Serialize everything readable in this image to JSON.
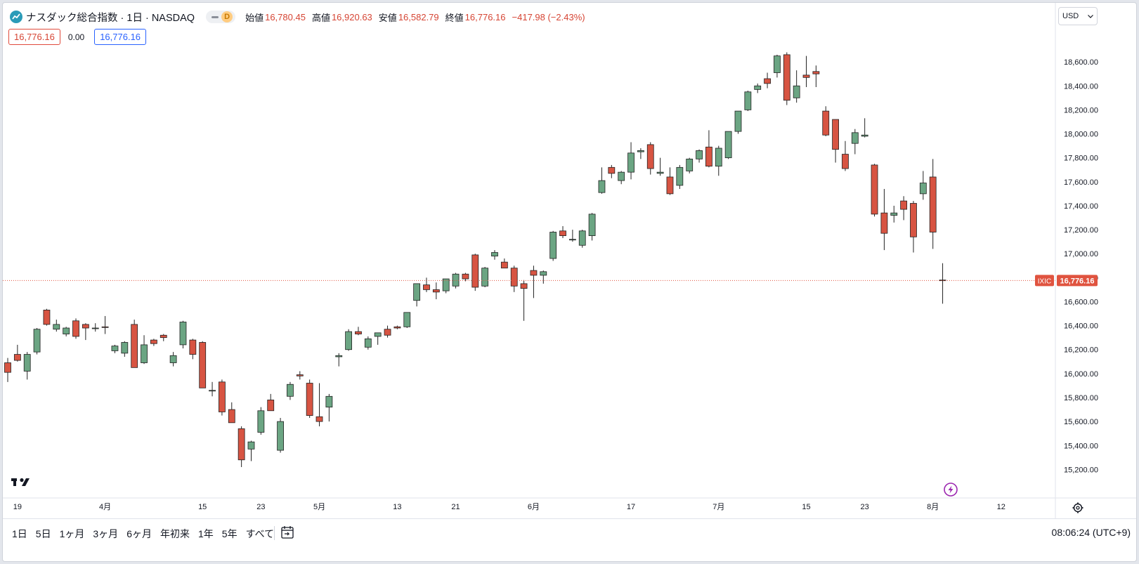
{
  "header": {
    "symbol_title": "ナスダック総合指数 · 1日 · NASDAQ",
    "data_status": "D",
    "open_label": "始値",
    "open_value": "16,780.45",
    "high_label": "高値",
    "high_value": "16,920.63",
    "low_label": "安値",
    "low_value": "16,582.79",
    "close_label": "終値",
    "close_value": "16,776.16",
    "change": "−417.98 (−2.43%)"
  },
  "badges": {
    "bid": "16,776.16",
    "spread": "0.00",
    "ask": "16,776.16"
  },
  "currency": {
    "selected": "USD"
  },
  "price_tag": {
    "symbol": "IXIC",
    "value": "16,776.16"
  },
  "range_buttons": [
    "1日",
    "5日",
    "1ヶ月",
    "3ヶ月",
    "6ヶ月",
    "年初来",
    "1年",
    "5年",
    "すべて"
  ],
  "clock": "08:06:24 (UTC+9)",
  "icons": {
    "logo": "tradingview-logo",
    "settings": "gear-icon",
    "alert": "lightning-icon",
    "goto": "calendar-goto-icon"
  },
  "colors": {
    "up": "#6ba583",
    "down": "#d75442",
    "wick": "#222222",
    "price_line": "#e0533f"
  },
  "chart_data": {
    "type": "candlestick",
    "ylim": [
      15050,
      18800
    ],
    "y_ticks": [
      15200,
      15400,
      15600,
      15800,
      16000,
      16200,
      16400,
      16600,
      16800,
      17000,
      17200,
      17400,
      17600,
      17800,
      18000,
      18200,
      18400,
      18600
    ],
    "y_tick_labels": [
      "15,200.00",
      "15,400.00",
      "15,600.00",
      "15,800.00",
      "16,000.00",
      "16,200.00",
      "16,400.00",
      "16,600.00",
      "16,800.00",
      "17,000.00",
      "17,200.00",
      "17,400.00",
      "17,600.00",
      "17,800.00",
      "18,000.00",
      "18,200.00",
      "18,400.00",
      "18,600.00"
    ],
    "x_tick_labels": [
      {
        "label": "19",
        "slot": 1
      },
      {
        "label": "4月",
        "slot": 10
      },
      {
        "label": "15",
        "slot": 20
      },
      {
        "label": "23",
        "slot": 26
      },
      {
        "label": "5月",
        "slot": 32
      },
      {
        "label": "13",
        "slot": 40
      },
      {
        "label": "21",
        "slot": 46
      },
      {
        "label": "6月",
        "slot": 54
      },
      {
        "label": "17",
        "slot": 64
      },
      {
        "label": "7月",
        "slot": 73
      },
      {
        "label": "15",
        "slot": 82
      },
      {
        "label": "23",
        "slot": 88
      },
      {
        "label": "8月",
        "slot": 95
      },
      {
        "label": "12",
        "slot": 102
      }
    ],
    "last_price": 16776.16,
    "candles": [
      {
        "slot": 0,
        "o": 16090,
        "h": 16130,
        "l": 15930,
        "c": 16010
      },
      {
        "slot": 1,
        "o": 16160,
        "h": 16240,
        "l": 16100,
        "c": 16110
      },
      {
        "slot": 2,
        "o": 16020,
        "h": 16180,
        "l": 15950,
        "c": 16160
      },
      {
        "slot": 3,
        "o": 16180,
        "h": 16380,
        "l": 16160,
        "c": 16370
      },
      {
        "slot": 4,
        "o": 16530,
        "h": 16540,
        "l": 16400,
        "c": 16410
      },
      {
        "slot": 5,
        "o": 16370,
        "h": 16450,
        "l": 16350,
        "c": 16410
      },
      {
        "slot": 6,
        "o": 16330,
        "h": 16390,
        "l": 16310,
        "c": 16380
      },
      {
        "slot": 7,
        "o": 16440,
        "h": 16460,
        "l": 16290,
        "c": 16310
      },
      {
        "slot": 8,
        "o": 16410,
        "h": 16420,
        "l": 16280,
        "c": 16380
      },
      {
        "slot": 9,
        "o": 16380,
        "h": 16420,
        "l": 16350,
        "c": 16380
      },
      {
        "slot": 10,
        "o": 16390,
        "h": 16480,
        "l": 16330,
        "c": 16385
      },
      {
        "slot": 11,
        "o": 16190,
        "h": 16240,
        "l": 16170,
        "c": 16230
      },
      {
        "slot": 12,
        "o": 16170,
        "h": 16270,
        "l": 16140,
        "c": 16260
      },
      {
        "slot": 13,
        "o": 16410,
        "h": 16450,
        "l": 16050,
        "c": 16050
      },
      {
        "slot": 14,
        "o": 16090,
        "h": 16320,
        "l": 16080,
        "c": 16240
      },
      {
        "slot": 15,
        "o": 16280,
        "h": 16290,
        "l": 16230,
        "c": 16250
      },
      {
        "slot": 16,
        "o": 16320,
        "h": 16330,
        "l": 16270,
        "c": 16300
      },
      {
        "slot": 17,
        "o": 16090,
        "h": 16180,
        "l": 16060,
        "c": 16150
      },
      {
        "slot": 18,
        "o": 16240,
        "h": 16440,
        "l": 16210,
        "c": 16430
      },
      {
        "slot": 19,
        "o": 16280,
        "h": 16290,
        "l": 16120,
        "c": 16160
      },
      {
        "slot": 20,
        "o": 16260,
        "h": 16270,
        "l": 15880,
        "c": 15880
      },
      {
        "slot": 21,
        "o": 15860,
        "h": 15930,
        "l": 15810,
        "c": 15860
      },
      {
        "slot": 22,
        "o": 15930,
        "h": 15950,
        "l": 15650,
        "c": 15680
      },
      {
        "slot": 23,
        "o": 15700,
        "h": 15760,
        "l": 15590,
        "c": 15590
      },
      {
        "slot": 24,
        "o": 15540,
        "h": 15560,
        "l": 15220,
        "c": 15280
      },
      {
        "slot": 25,
        "o": 15370,
        "h": 15440,
        "l": 15270,
        "c": 15430
      },
      {
        "slot": 26,
        "o": 15510,
        "h": 15720,
        "l": 15490,
        "c": 15690
      },
      {
        "slot": 27,
        "o": 15780,
        "h": 15830,
        "l": 15710,
        "c": 15690
      },
      {
        "slot": 28,
        "o": 15360,
        "h": 15630,
        "l": 15340,
        "c": 15600
      },
      {
        "slot": 29,
        "o": 15810,
        "h": 15930,
        "l": 15780,
        "c": 15910
      },
      {
        "slot": 30,
        "o": 15990,
        "h": 16020,
        "l": 15950,
        "c": 15980
      },
      {
        "slot": 31,
        "o": 15920,
        "h": 15950,
        "l": 15630,
        "c": 15650
      },
      {
        "slot": 32,
        "o": 15640,
        "h": 15920,
        "l": 15560,
        "c": 15600
      },
      {
        "slot": 33,
        "o": 15720,
        "h": 15830,
        "l": 15600,
        "c": 15810
      },
      {
        "slot": 34,
        "o": 16140,
        "h": 16170,
        "l": 16060,
        "c": 16150
      },
      {
        "slot": 35,
        "o": 16200,
        "h": 16370,
        "l": 16190,
        "c": 16350
      },
      {
        "slot": 36,
        "o": 16350,
        "h": 16390,
        "l": 16320,
        "c": 16330
      },
      {
        "slot": 37,
        "o": 16220,
        "h": 16310,
        "l": 16200,
        "c": 16290
      },
      {
        "slot": 38,
        "o": 16310,
        "h": 16340,
        "l": 16240,
        "c": 16340
      },
      {
        "slot": 39,
        "o": 16370,
        "h": 16400,
        "l": 16300,
        "c": 16320
      },
      {
        "slot": 40,
        "o": 16390,
        "h": 16400,
        "l": 16370,
        "c": 16380
      },
      {
        "slot": 41,
        "o": 16390,
        "h": 16510,
        "l": 16380,
        "c": 16510
      },
      {
        "slot": 42,
        "o": 16610,
        "h": 16750,
        "l": 16560,
        "c": 16750
      },
      {
        "slot": 43,
        "o": 16740,
        "h": 16800,
        "l": 16680,
        "c": 16700
      },
      {
        "slot": 44,
        "o": 16700,
        "h": 16760,
        "l": 16620,
        "c": 16680
      },
      {
        "slot": 45,
        "o": 16690,
        "h": 16790,
        "l": 16670,
        "c": 16790
      },
      {
        "slot": 46,
        "o": 16730,
        "h": 16840,
        "l": 16710,
        "c": 16830
      },
      {
        "slot": 47,
        "o": 16830,
        "h": 16840,
        "l": 16770,
        "c": 16790
      },
      {
        "slot": 48,
        "o": 16990,
        "h": 17000,
        "l": 16690,
        "c": 16720
      },
      {
        "slot": 49,
        "o": 16730,
        "h": 16890,
        "l": 16720,
        "c": 16880
      },
      {
        "slot": 50,
        "o": 16980,
        "h": 17030,
        "l": 16950,
        "c": 17010
      },
      {
        "slot": 51,
        "o": 16930,
        "h": 16960,
        "l": 16880,
        "c": 16880
      },
      {
        "slot": 52,
        "o": 16880,
        "h": 16900,
        "l": 16680,
        "c": 16730
      },
      {
        "slot": 53,
        "o": 16750,
        "h": 16780,
        "l": 16440,
        "c": 16710
      },
      {
        "slot": 54,
        "o": 16860,
        "h": 16900,
        "l": 16630,
        "c": 16820
      },
      {
        "slot": 55,
        "o": 16820,
        "h": 16860,
        "l": 16750,
        "c": 16850
      },
      {
        "slot": 56,
        "o": 16960,
        "h": 17190,
        "l": 16940,
        "c": 17180
      },
      {
        "slot": 57,
        "o": 17190,
        "h": 17230,
        "l": 17130,
        "c": 17150
      },
      {
        "slot": 58,
        "o": 17120,
        "h": 17200,
        "l": 17100,
        "c": 17120
      },
      {
        "slot": 59,
        "o": 17070,
        "h": 17200,
        "l": 17050,
        "c": 17190
      },
      {
        "slot": 60,
        "o": 17150,
        "h": 17340,
        "l": 17110,
        "c": 17330
      },
      {
        "slot": 61,
        "o": 17510,
        "h": 17720,
        "l": 17500,
        "c": 17610
      },
      {
        "slot": 62,
        "o": 17720,
        "h": 17740,
        "l": 17630,
        "c": 17670
      },
      {
        "slot": 63,
        "o": 17610,
        "h": 17690,
        "l": 17580,
        "c": 17680
      },
      {
        "slot": 64,
        "o": 17680,
        "h": 17930,
        "l": 17620,
        "c": 17840
      },
      {
        "slot": 65,
        "o": 17850,
        "h": 17880,
        "l": 17790,
        "c": 17860
      },
      {
        "slot": 66,
        "o": 17910,
        "h": 17930,
        "l": 17660,
        "c": 17710
      },
      {
        "slot": 67,
        "o": 17670,
        "h": 17800,
        "l": 17650,
        "c": 17680
      },
      {
        "slot": 68,
        "o": 17640,
        "h": 17720,
        "l": 17490,
        "c": 17500
      },
      {
        "slot": 69,
        "o": 17570,
        "h": 17740,
        "l": 17540,
        "c": 17720
      },
      {
        "slot": 70,
        "o": 17690,
        "h": 17800,
        "l": 17670,
        "c": 17790
      },
      {
        "slot": 71,
        "o": 17790,
        "h": 17870,
        "l": 17760,
        "c": 17860
      },
      {
        "slot": 72,
        "o": 17890,
        "h": 18030,
        "l": 17720,
        "c": 17730
      },
      {
        "slot": 73,
        "o": 17730,
        "h": 17900,
        "l": 17650,
        "c": 17880
      },
      {
        "slot": 74,
        "o": 17800,
        "h": 18010,
        "l": 17790,
        "c": 18020
      },
      {
        "slot": 75,
        "o": 18020,
        "h": 18190,
        "l": 18000,
        "c": 18190
      },
      {
        "slot": 76,
        "o": 18200,
        "h": 18360,
        "l": 18190,
        "c": 18350
      },
      {
        "slot": 77,
        "o": 18370,
        "h": 18420,
        "l": 18340,
        "c": 18400
      },
      {
        "slot": 78,
        "o": 18460,
        "h": 18510,
        "l": 18380,
        "c": 18420
      },
      {
        "slot": 79,
        "o": 18510,
        "h": 18660,
        "l": 18470,
        "c": 18650
      },
      {
        "slot": 80,
        "o": 18660,
        "h": 18680,
        "l": 18240,
        "c": 18280
      },
      {
        "slot": 81,
        "o": 18300,
        "h": 18530,
        "l": 18260,
        "c": 18400
      },
      {
        "slot": 82,
        "o": 18490,
        "h": 18650,
        "l": 18390,
        "c": 18470
      },
      {
        "slot": 83,
        "o": 18520,
        "h": 18570,
        "l": 18390,
        "c": 18500
      },
      {
        "slot": 84,
        "o": 18190,
        "h": 18230,
        "l": 17980,
        "c": 17990
      },
      {
        "slot": 85,
        "o": 18120,
        "h": 18120,
        "l": 17760,
        "c": 17870
      },
      {
        "slot": 86,
        "o": 17830,
        "h": 17940,
        "l": 17690,
        "c": 17710
      },
      {
        "slot": 87,
        "o": 17920,
        "h": 18040,
        "l": 17830,
        "c": 18010
      },
      {
        "slot": 88,
        "o": 17980,
        "h": 18130,
        "l": 17970,
        "c": 17990
      },
      {
        "slot": 89,
        "o": 17740,
        "h": 17750,
        "l": 17310,
        "c": 17330
      },
      {
        "slot": 90,
        "o": 17340,
        "h": 17540,
        "l": 17030,
        "c": 17170
      },
      {
        "slot": 91,
        "o": 17320,
        "h": 17400,
        "l": 17260,
        "c": 17340
      },
      {
        "slot": 92,
        "o": 17440,
        "h": 17480,
        "l": 17280,
        "c": 17370
      },
      {
        "slot": 93,
        "o": 17420,
        "h": 17440,
        "l": 17010,
        "c": 17140
      },
      {
        "slot": 94,
        "o": 17500,
        "h": 17690,
        "l": 17450,
        "c": 17590
      },
      {
        "slot": 95,
        "o": 17640,
        "h": 17790,
        "l": 17040,
        "c": 17180
      },
      {
        "slot": 96,
        "o": 16780.45,
        "h": 16920.63,
        "l": 16582.79,
        "c": 16776.16
      }
    ]
  }
}
